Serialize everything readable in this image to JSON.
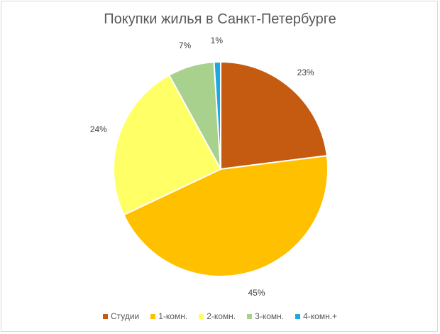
{
  "chart_data": {
    "type": "pie",
    "title": "Покупки жилья в Санкт-Петербурге",
    "categories": [
      "Студии",
      "1-комн.",
      "2-комн.",
      "3-комн.",
      "4-комн.+"
    ],
    "values": [
      23,
      45,
      24,
      7,
      1
    ],
    "data_labels": [
      "23%",
      "45%",
      "24%",
      "7%",
      "1%"
    ],
    "colors": [
      "#c55a11",
      "#ffc000",
      "#ffff66",
      "#a9d18e",
      "#1ca9e0"
    ],
    "legend_position": "bottom",
    "start_angle": "12 o'clock, clockwise"
  }
}
